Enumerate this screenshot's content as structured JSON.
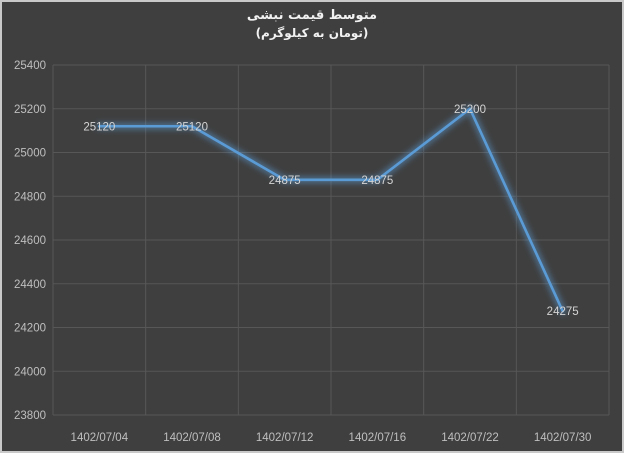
{
  "chart_data": {
    "type": "line",
    "title": "متوسط قیمت نبشی",
    "subtitle": "(تومان به کیلوگرم)",
    "categories": [
      "1402/07/04",
      "1402/07/08",
      "1402/07/12",
      "1402/07/16",
      "1402/07/22",
      "1402/07/30"
    ],
    "series": [
      {
        "name": "متوسط قیمت نبشی",
        "values": [
          25120,
          25120,
          24875,
          24875,
          25200,
          24275
        ]
      }
    ],
    "data_labels": [
      "25120",
      "25120",
      "24875",
      "24875",
      "25200",
      "24275"
    ],
    "xlabel": "",
    "ylabel": "",
    "ylim": [
      23800,
      25400
    ],
    "y_tick_step": 200,
    "y_ticks": [
      25400,
      25200,
      25000,
      24800,
      24600,
      24400,
      24200,
      24000,
      23800
    ],
    "grid": "both",
    "legend": "none",
    "data_label_position": "center",
    "colors": {
      "background": "#3f3f3f",
      "border": "#c9c9c9",
      "gridline": "#575757",
      "axis_label": "#bfbfbf",
      "data_label": "#d4d4d4",
      "title": "#f2f2f2",
      "line": "#5b9bd5"
    }
  }
}
